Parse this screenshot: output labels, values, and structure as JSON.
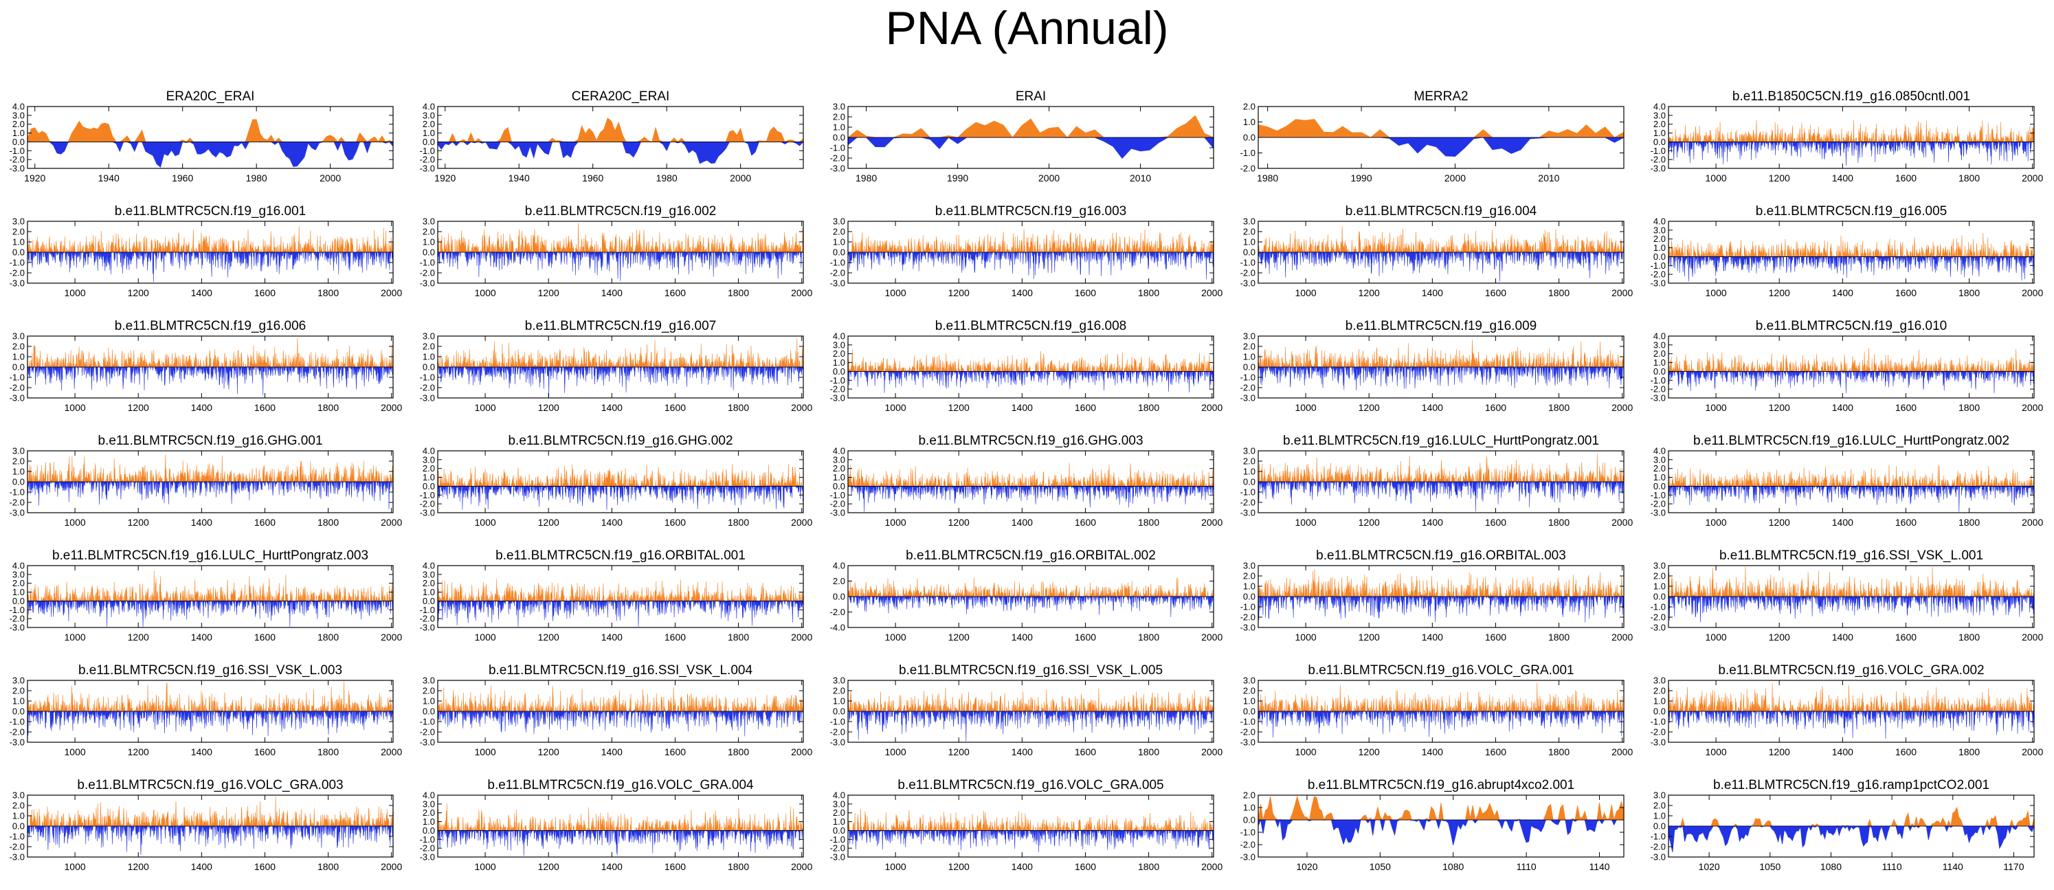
{
  "title": "PNA (Annual)",
  "colors": {
    "positive": "#f58220",
    "negative": "#2233e6",
    "axis": "#000000"
  },
  "chart_data": [
    {
      "type": "area",
      "title": "ERA20C_ERAI",
      "x_range": [
        1918,
        2017
      ],
      "xticks": [
        1920,
        1940,
        1960,
        1980,
        2000
      ],
      "ylim": [
        -3.0,
        4.0
      ],
      "yticks": [
        "4.0",
        "3.0",
        "2.0",
        "1.0",
        "0.0",
        "-1.0",
        "-2.0",
        "-3.0"
      ],
      "style": "smooth",
      "seed": 11,
      "amp": 1.5,
      "trend": -0.012
    },
    {
      "type": "area",
      "title": "CERA20C_ERAI",
      "x_range": [
        1918,
        2017
      ],
      "xticks": [
        1920,
        1940,
        1960,
        1980,
        2000
      ],
      "ylim": [
        -3.0,
        4.0
      ],
      "yticks": [
        "4.0",
        "3.0",
        "2.0",
        "1.0",
        "0.0",
        "-1.0",
        "-2.0",
        "-3.0"
      ],
      "style": "smooth",
      "seed": 23,
      "amp": 1.3,
      "trend": -0.01
    },
    {
      "type": "area",
      "title": "ERAI",
      "x_range": [
        1978,
        2018
      ],
      "xticks": [
        1980,
        1990,
        2000,
        2010
      ],
      "ylim": [
        -3.0,
        3.0
      ],
      "yticks": [
        "3.0",
        "2.0",
        "1.0",
        "0.0",
        "-1.0",
        "-2.0",
        "-3.0"
      ],
      "style": "smooth",
      "seed": 37,
      "amp": 1.2,
      "trend": 0
    },
    {
      "type": "area",
      "title": "MERRA2",
      "x_range": [
        1979,
        2018
      ],
      "xticks": [
        1980,
        1990,
        2000,
        2010
      ],
      "ylim": [
        -2.0,
        2.0
      ],
      "yticks": [
        "2.0",
        "1.0",
        "0.0",
        "-1.0",
        "-2.0"
      ],
      "style": "smooth",
      "seed": 41,
      "amp": 0.9,
      "trend": 0
    },
    {
      "type": "area",
      "title": "b.e11.B1850C5CN.f19_g16.0850cntl.001",
      "x_range": [
        850,
        2005
      ],
      "xticks": [
        1000,
        1200,
        1400,
        1600,
        1800,
        2000
      ],
      "ylim": [
        -3.0,
        4.0
      ],
      "yticks": [
        "4.0",
        "3.0",
        "2.0",
        "1.0",
        "0.0",
        "-1.0",
        "-2.0",
        "-3.0"
      ],
      "style": "spiky",
      "seed": 53,
      "amp": 1.2,
      "trend": 0
    },
    {
      "type": "area",
      "title": "b.e11.BLMTRC5CN.f19_g16.001",
      "x_range": [
        850,
        2005
      ],
      "xticks": [
        1000,
        1200,
        1400,
        1600,
        1800,
        2000
      ],
      "ylim": [
        -3.0,
        3.0
      ],
      "yticks": [
        "3.0",
        "2.0",
        "1.0",
        "0.0",
        "-1.0",
        "-2.0",
        "-3.0"
      ],
      "style": "spiky",
      "seed": 61,
      "amp": 1.1,
      "trend": 0
    },
    {
      "type": "area",
      "title": "b.e11.BLMTRC5CN.f19_g16.002",
      "x_range": [
        850,
        2005
      ],
      "xticks": [
        1000,
        1200,
        1400,
        1600,
        1800,
        2000
      ],
      "ylim": [
        -3.0,
        3.0
      ],
      "yticks": [
        "3.0",
        "2.0",
        "1.0",
        "0.0",
        "-1.0",
        "-2.0",
        "-3.0"
      ],
      "style": "spiky",
      "seed": 67,
      "amp": 1.1,
      "trend": 0
    },
    {
      "type": "area",
      "title": "b.e11.BLMTRC5CN.f19_g16.003",
      "x_range": [
        850,
        2005
      ],
      "xticks": [
        1000,
        1200,
        1400,
        1600,
        1800,
        2000
      ],
      "ylim": [
        -3.0,
        3.0
      ],
      "yticks": [
        "3.0",
        "2.0",
        "1.0",
        "0.0",
        "-1.0",
        "-2.0",
        "-3.0"
      ],
      "style": "spiky",
      "seed": 71,
      "amp": 1.1,
      "trend": 0
    },
    {
      "type": "area",
      "title": "b.e11.BLMTRC5CN.f19_g16.004",
      "x_range": [
        850,
        2005
      ],
      "xticks": [
        1000,
        1200,
        1400,
        1600,
        1800,
        2000
      ],
      "ylim": [
        -3.0,
        3.0
      ],
      "yticks": [
        "3.0",
        "2.0",
        "1.0",
        "0.0",
        "-1.0",
        "-2.0",
        "-3.0"
      ],
      "style": "spiky",
      "seed": 73,
      "amp": 1.1,
      "trend": 0
    },
    {
      "type": "area",
      "title": "b.e11.BLMTRC5CN.f19_g16.005",
      "x_range": [
        850,
        2005
      ],
      "xticks": [
        1000,
        1200,
        1400,
        1600,
        1800,
        2000
      ],
      "ylim": [
        -3.0,
        4.0
      ],
      "yticks": [
        "4.0",
        "3.0",
        "2.0",
        "1.0",
        "0.0",
        "-1.0",
        "-2.0",
        "-3.0"
      ],
      "style": "spiky",
      "seed": 79,
      "amp": 1.2,
      "trend": 0
    },
    {
      "type": "area",
      "title": "b.e11.BLMTRC5CN.f19_g16.006",
      "x_range": [
        850,
        2005
      ],
      "xticks": [
        1000,
        1200,
        1400,
        1600,
        1800,
        2000
      ],
      "ylim": [
        -3.0,
        3.0
      ],
      "yticks": [
        "3.0",
        "2.0",
        "1.0",
        "0.0",
        "-1.0",
        "-2.0",
        "-3.0"
      ],
      "style": "spiky",
      "seed": 83,
      "amp": 1.1,
      "trend": 0
    },
    {
      "type": "area",
      "title": "b.e11.BLMTRC5CN.f19_g16.007",
      "x_range": [
        850,
        2005
      ],
      "xticks": [
        1000,
        1200,
        1400,
        1600,
        1800,
        2000
      ],
      "ylim": [
        -3.0,
        3.0
      ],
      "yticks": [
        "3.0",
        "2.0",
        "1.0",
        "0.0",
        "-1.0",
        "-2.0",
        "-3.0"
      ],
      "style": "spiky",
      "seed": 89,
      "amp": 1.1,
      "trend": 0
    },
    {
      "type": "area",
      "title": "b.e11.BLMTRC5CN.f19_g16.008",
      "x_range": [
        850,
        2005
      ],
      "xticks": [
        1000,
        1200,
        1400,
        1600,
        1800,
        2000
      ],
      "ylim": [
        -3.0,
        4.0
      ],
      "yticks": [
        "4.0",
        "3.0",
        "2.0",
        "1.0",
        "0.0",
        "-1.0",
        "-2.0",
        "-3.0"
      ],
      "style": "spiky",
      "seed": 97,
      "amp": 1.1,
      "trend": 0
    },
    {
      "type": "area",
      "title": "b.e11.BLMTRC5CN.f19_g16.009",
      "x_range": [
        850,
        2005
      ],
      "xticks": [
        1000,
        1200,
        1400,
        1600,
        1800,
        2000
      ],
      "ylim": [
        -3.0,
        3.0
      ],
      "yticks": [
        "3.0",
        "2.0",
        "1.0",
        "0.0",
        "-1.0",
        "-2.0",
        "-3.0"
      ],
      "style": "spiky",
      "seed": 101,
      "amp": 1.1,
      "trend": 0
    },
    {
      "type": "area",
      "title": "b.e11.BLMTRC5CN.f19_g16.010",
      "x_range": [
        850,
        2005
      ],
      "xticks": [
        1000,
        1200,
        1400,
        1600,
        1800,
        2000
      ],
      "ylim": [
        -3.0,
        4.0
      ],
      "yticks": [
        "4.0",
        "3.0",
        "2.0",
        "1.0",
        "0.0",
        "-1.0",
        "-2.0",
        "-3.0"
      ],
      "style": "spiky",
      "seed": 103,
      "amp": 1.1,
      "trend": 0
    },
    {
      "type": "area",
      "title": "b.e11.BLMTRC5CN.f19_g16.GHG.001",
      "x_range": [
        850,
        2005
      ],
      "xticks": [
        1000,
        1200,
        1400,
        1600,
        1800,
        2000
      ],
      "ylim": [
        -3.0,
        3.0
      ],
      "yticks": [
        "3.0",
        "2.0",
        "1.0",
        "0.0",
        "-1.0",
        "-2.0",
        "-3.0"
      ],
      "style": "spiky",
      "seed": 107,
      "amp": 1.1,
      "trend": 0
    },
    {
      "type": "area",
      "title": "b.e11.BLMTRC5CN.f19_g16.GHG.002",
      "x_range": [
        850,
        2005
      ],
      "xticks": [
        1000,
        1200,
        1400,
        1600,
        1800,
        2000
      ],
      "ylim": [
        -3.0,
        4.0
      ],
      "yticks": [
        "4.0",
        "3.0",
        "2.0",
        "1.0",
        "0.0",
        "-1.0",
        "-2.0",
        "-3.0"
      ],
      "style": "spiky",
      "seed": 109,
      "amp": 1.2,
      "trend": 0
    },
    {
      "type": "area",
      "title": "b.e11.BLMTRC5CN.f19_g16.GHG.003",
      "x_range": [
        850,
        2005
      ],
      "xticks": [
        1000,
        1200,
        1400,
        1600,
        1800,
        2000
      ],
      "ylim": [
        -3.0,
        4.0
      ],
      "yticks": [
        "4.0",
        "3.0",
        "2.0",
        "1.0",
        "0.0",
        "-1.0",
        "-2.0",
        "-3.0"
      ],
      "style": "spiky",
      "seed": 113,
      "amp": 1.1,
      "trend": 0
    },
    {
      "type": "area",
      "title": "b.e11.BLMTRC5CN.f19_g16.LULC_HurttPongratz.001",
      "x_range": [
        850,
        2005
      ],
      "xticks": [
        1000,
        1200,
        1400,
        1600,
        1800,
        2000
      ],
      "ylim": [
        -3.0,
        3.0
      ],
      "yticks": [
        "3.0",
        "2.0",
        "1.0",
        "0.0",
        "-1.0",
        "-2.0",
        "-3.0"
      ],
      "style": "spiky",
      "seed": 127,
      "amp": 1.1,
      "trend": 0
    },
    {
      "type": "area",
      "title": "b.e11.BLMTRC5CN.f19_g16.LULC_HurttPongratz.002",
      "x_range": [
        850,
        2005
      ],
      "xticks": [
        1000,
        1200,
        1400,
        1600,
        1800,
        2000
      ],
      "ylim": [
        -3.0,
        4.0
      ],
      "yticks": [
        "4.0",
        "3.0",
        "2.0",
        "1.0",
        "0.0",
        "-1.0",
        "-2.0",
        "-3.0"
      ],
      "style": "spiky",
      "seed": 131,
      "amp": 1.1,
      "trend": 0
    },
    {
      "type": "area",
      "title": "b.e11.BLMTRC5CN.f19_g16.LULC_HurttPongratz.003",
      "x_range": [
        850,
        2005
      ],
      "xticks": [
        1000,
        1200,
        1400,
        1600,
        1800,
        2000
      ],
      "ylim": [
        -3.0,
        4.0
      ],
      "yticks": [
        "4.0",
        "3.0",
        "2.0",
        "1.0",
        "0.0",
        "-1.0",
        "-2.0",
        "-3.0"
      ],
      "style": "spiky",
      "seed": 137,
      "amp": 1.2,
      "trend": 0
    },
    {
      "type": "area",
      "title": "b.e11.BLMTRC5CN.f19_g16.ORBITAL.001",
      "x_range": [
        850,
        2005
      ],
      "xticks": [
        1000,
        1200,
        1400,
        1600,
        1800,
        2000
      ],
      "ylim": [
        -3.0,
        4.0
      ],
      "yticks": [
        "4.0",
        "3.0",
        "2.0",
        "1.0",
        "0.0",
        "-1.0",
        "-2.0",
        "-3.0"
      ],
      "style": "spiky",
      "seed": 139,
      "amp": 1.2,
      "trend": 0
    },
    {
      "type": "area",
      "title": "b.e11.BLMTRC5CN.f19_g16.ORBITAL.002",
      "x_range": [
        850,
        2005
      ],
      "xticks": [
        1000,
        1200,
        1400,
        1600,
        1800,
        2000
      ],
      "ylim": [
        -4.0,
        4.0
      ],
      "yticks": [
        "4.0",
        "2.0",
        "0.0",
        "-2.0",
        "-4.0"
      ],
      "style": "spiky",
      "seed": 149,
      "amp": 1.1,
      "trend": 0
    },
    {
      "type": "area",
      "title": "b.e11.BLMTRC5CN.f19_g16.ORBITAL.003",
      "x_range": [
        850,
        2005
      ],
      "xticks": [
        1000,
        1200,
        1400,
        1600,
        1800,
        2000
      ],
      "ylim": [
        -3.0,
        3.0
      ],
      "yticks": [
        "3.0",
        "2.0",
        "1.0",
        "0.0",
        "-1.0",
        "-2.0",
        "-3.0"
      ],
      "style": "spiky",
      "seed": 151,
      "amp": 1.1,
      "trend": 0
    },
    {
      "type": "area",
      "title": "b.e11.BLMTRC5CN.f19_g16.SSI_VSK_L.001",
      "x_range": [
        850,
        2005
      ],
      "xticks": [
        1000,
        1200,
        1400,
        1600,
        1800,
        2000
      ],
      "ylim": [
        -3.0,
        3.0
      ],
      "yticks": [
        "3.0",
        "2.0",
        "1.0",
        "0.0",
        "-1.0",
        "-2.0",
        "-3.0"
      ],
      "style": "spiky",
      "seed": 157,
      "amp": 1.1,
      "trend": 0
    },
    {
      "type": "area",
      "title": "b.e11.BLMTRC5CN.f19_g16.SSI_VSK_L.003",
      "x_range": [
        850,
        2005
      ],
      "xticks": [
        1000,
        1200,
        1400,
        1600,
        1800,
        2000
      ],
      "ylim": [
        -3.0,
        3.0
      ],
      "yticks": [
        "3.0",
        "2.0",
        "1.0",
        "0.0",
        "-1.0",
        "-2.0",
        "-3.0"
      ],
      "style": "spiky",
      "seed": 163,
      "amp": 1.1,
      "trend": 0
    },
    {
      "type": "area",
      "title": "b.e11.BLMTRC5CN.f19_g16.SSI_VSK_L.004",
      "x_range": [
        850,
        2005
      ],
      "xticks": [
        1000,
        1200,
        1400,
        1600,
        1800,
        2000
      ],
      "ylim": [
        -3.0,
        3.0
      ],
      "yticks": [
        "3.0",
        "2.0",
        "1.0",
        "0.0",
        "-1.0",
        "-2.0",
        "-3.0"
      ],
      "style": "spiky",
      "seed": 167,
      "amp": 1.1,
      "trend": 0
    },
    {
      "type": "area",
      "title": "b.e11.BLMTRC5CN.f19_g16.SSI_VSK_L.005",
      "x_range": [
        850,
        2005
      ],
      "xticks": [
        1000,
        1200,
        1400,
        1600,
        1800,
        2000
      ],
      "ylim": [
        -3.0,
        3.0
      ],
      "yticks": [
        "3.0",
        "2.0",
        "1.0",
        "0.0",
        "-1.0",
        "-2.0",
        "-3.0"
      ],
      "style": "spiky",
      "seed": 173,
      "amp": 1.1,
      "trend": 0
    },
    {
      "type": "area",
      "title": "b.e11.BLMTRC5CN.f19_g16.VOLC_GRA.001",
      "x_range": [
        850,
        2005
      ],
      "xticks": [
        1000,
        1200,
        1400,
        1600,
        1800,
        2000
      ],
      "ylim": [
        -3.0,
        3.0
      ],
      "yticks": [
        "3.0",
        "2.0",
        "1.0",
        "0.0",
        "-1.0",
        "-2.0",
        "-3.0"
      ],
      "style": "spiky",
      "seed": 179,
      "amp": 1.1,
      "trend": 0
    },
    {
      "type": "area",
      "title": "b.e11.BLMTRC5CN.f19_g16.VOLC_GRA.002",
      "x_range": [
        850,
        2005
      ],
      "xticks": [
        1000,
        1200,
        1400,
        1600,
        1800,
        2000
      ],
      "ylim": [
        -3.0,
        3.0
      ],
      "yticks": [
        "3.0",
        "2.0",
        "1.0",
        "0.0",
        "-1.0",
        "-2.0",
        "-3.0"
      ],
      "style": "spiky",
      "seed": 181,
      "amp": 1.1,
      "trend": 0
    },
    {
      "type": "area",
      "title": "b.e11.BLMTRC5CN.f19_g16.VOLC_GRA.003",
      "x_range": [
        850,
        2005
      ],
      "xticks": [
        1000,
        1200,
        1400,
        1600,
        1800,
        2000
      ],
      "ylim": [
        -3.0,
        3.0
      ],
      "yticks": [
        "3.0",
        "2.0",
        "1.0",
        "0.0",
        "-1.0",
        "-2.0",
        "-3.0"
      ],
      "style": "spiky",
      "seed": 191,
      "amp": 1.1,
      "trend": 0
    },
    {
      "type": "area",
      "title": "b.e11.BLMTRC5CN.f19_g16.VOLC_GRA.004",
      "x_range": [
        850,
        2005
      ],
      "xticks": [
        1000,
        1200,
        1400,
        1600,
        1800,
        2000
      ],
      "ylim": [
        -3.0,
        4.0
      ],
      "yticks": [
        "4.0",
        "3.0",
        "2.0",
        "1.0",
        "0.0",
        "-1.0",
        "-2.0",
        "-3.0"
      ],
      "style": "spiky",
      "seed": 193,
      "amp": 1.2,
      "trend": 0
    },
    {
      "type": "area",
      "title": "b.e11.BLMTRC5CN.f19_g16.VOLC_GRA.005",
      "x_range": [
        850,
        2005
      ],
      "xticks": [
        1000,
        1200,
        1400,
        1600,
        1800,
        2000
      ],
      "ylim": [
        -3.0,
        4.0
      ],
      "yticks": [
        "4.0",
        "3.0",
        "2.0",
        "1.0",
        "0.0",
        "-1.0",
        "-2.0",
        "-3.0"
      ],
      "style": "spiky",
      "seed": 197,
      "amp": 1.1,
      "trend": 0
    },
    {
      "type": "area",
      "title": "b.e11.BLMTRC5CN.f19_g16.abrupt4xco2.001",
      "x_range": [
        1000,
        1150
      ],
      "xticks": [
        1020,
        1050,
        1080,
        1110,
        1140
      ],
      "ylim": [
        -3.0,
        2.0
      ],
      "yticks": [
        "2.0",
        "1.0",
        "0.0",
        "-1.0",
        "-2.0",
        "-3.0"
      ],
      "style": "medium",
      "seed": 199,
      "amp": 1.0,
      "trend": 0
    },
    {
      "type": "area",
      "title": "b.e11.BLMTRC5CN.f19_g16.ramp1pctCO2.001",
      "x_range": [
        1000,
        1180
      ],
      "xticks": [
        1020,
        1050,
        1080,
        1110,
        1140,
        1170
      ],
      "ylim": [
        -3.0,
        3.0
      ],
      "yticks": [
        "3.0",
        "2.0",
        "1.0",
        "0.0",
        "-1.0",
        "-2.0",
        "-3.0"
      ],
      "style": "medium",
      "seed": 211,
      "amp": 1.0,
      "trend": 0
    }
  ]
}
